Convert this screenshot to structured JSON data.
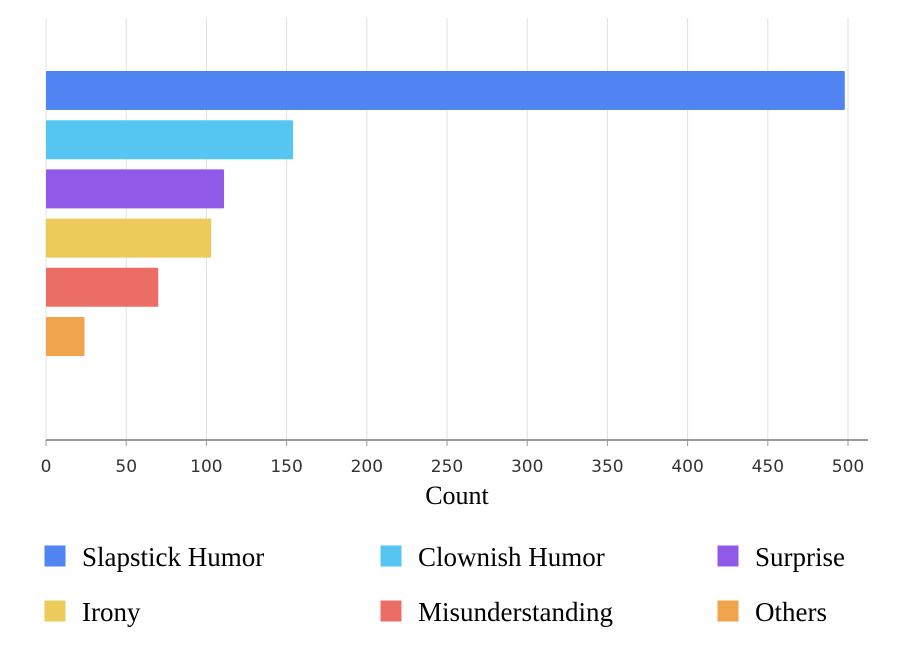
{
  "chart_data": {
    "type": "bar",
    "orientation": "horizontal",
    "title": "",
    "xlabel": "Count",
    "ylabel": "",
    "xlim": [
      0,
      500
    ],
    "x_ticks": [
      0,
      50,
      100,
      150,
      200,
      250,
      300,
      350,
      400,
      450,
      500
    ],
    "grid": true,
    "legend_position": "bottom",
    "categories": [
      "Slapstick Humor",
      "Clownish Humor",
      "Surprise",
      "Irony",
      "Misunderstanding",
      "Others"
    ],
    "values": [
      498,
      154,
      111,
      103,
      70,
      24
    ],
    "colors": [
      "#5084f2",
      "#55c6f2",
      "#9059e8",
      "#eccb5a",
      "#ec6d65",
      "#f0a44b"
    ]
  }
}
